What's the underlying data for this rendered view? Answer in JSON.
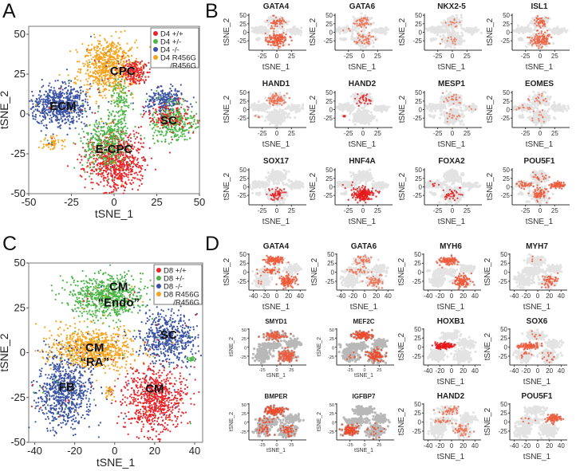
{
  "panel_letters": [
    "A",
    "B",
    "C",
    "D"
  ],
  "chart_data": [
    {
      "id": "A",
      "type": "scatter",
      "xlabel": "tSNE_1",
      "ylabel": "tSNE_2",
      "xlim": [
        -50,
        50
      ],
      "ylim": [
        -50,
        55
      ],
      "xticks": [
        -50,
        -25,
        0,
        25,
        50
      ],
      "yticks": [
        -50,
        -25,
        0,
        25,
        50
      ],
      "legend_position": "top-right",
      "legend": [
        {
          "label": "D4 +/+",
          "color": "#e8262b"
        },
        {
          "label": "D4 +/-",
          "color": "#4cb748"
        },
        {
          "label": "D4 -/-",
          "color": "#3a53a4"
        },
        {
          "label": "D4 R456G",
          "label2": "/R456G",
          "color": "#f6a31d"
        }
      ],
      "cluster_labels": [
        {
          "text": "CPC",
          "x": 5,
          "y": 27
        },
        {
          "text": "ECM",
          "x": -30,
          "y": 5
        },
        {
          "text": "SC",
          "x": 32,
          "y": -4
        },
        {
          "text": "E-CPC",
          "x": 0,
          "y": -22
        }
      ],
      "clusters": [
        {
          "name": "CPC",
          "series": 3,
          "cx": -3,
          "cy": 30,
          "sx": 8,
          "sy": 9,
          "n": 700
        },
        {
          "name": "CPC-top",
          "series": 0,
          "cx": 12,
          "cy": 27,
          "sx": 4,
          "sy": 4,
          "n": 180
        },
        {
          "name": "ECM",
          "series": 2,
          "cx": -32,
          "cy": 5,
          "sx": 9,
          "sy": 6,
          "n": 650
        },
        {
          "name": "SC-blue",
          "series": 2,
          "cx": 30,
          "cy": 8,
          "sx": 6,
          "sy": 4,
          "n": 250
        },
        {
          "name": "SC-green",
          "series": 1,
          "cx": 35,
          "cy": -5,
          "sx": 7,
          "sy": 6,
          "n": 320
        },
        {
          "name": "SC-red",
          "series": 0,
          "cx": 32,
          "cy": -2,
          "sx": 7,
          "sy": 5,
          "n": 120
        },
        {
          "name": "E-CPC-red",
          "series": 0,
          "cx": 1,
          "cy": -30,
          "sx": 8,
          "sy": 9,
          "n": 750
        },
        {
          "name": "E-CPC-green",
          "series": 1,
          "cx": -5,
          "cy": -18,
          "sx": 7,
          "sy": 8,
          "n": 350
        },
        {
          "name": "stripe",
          "series": 1,
          "cx": 3,
          "cy": 5,
          "sx": 3,
          "sy": 9,
          "n": 150
        },
        {
          "name": "orange-small",
          "series": 3,
          "cx": -36,
          "cy": -18,
          "sx": 3,
          "sy": 2,
          "n": 60
        }
      ]
    },
    {
      "id": "C",
      "type": "scatter",
      "xlabel": "tSNE_1",
      "ylabel": "tSNE_2",
      "xlim": [
        -43,
        44
      ],
      "ylim": [
        -50,
        50
      ],
      "xticks": [
        -40,
        -20,
        0,
        20,
        40
      ],
      "yticks": [
        -50,
        -25,
        0,
        25,
        50
      ],
      "legend_position": "top-right",
      "legend": [
        {
          "label": "D8 +/+",
          "color": "#e8262b"
        },
        {
          "label": "D8 +/-",
          "color": "#4cb748"
        },
        {
          "label": "D8 -/-",
          "color": "#3a53a4"
        },
        {
          "label": "D8 R456G",
          "label2": "/R456G",
          "color": "#f6a31d"
        }
      ],
      "cluster_labels": [
        {
          "text": "CM",
          "x": 2,
          "y": 37
        },
        {
          "text": "“Endo”",
          "x": 2,
          "y": 28
        },
        {
          "text": "CM",
          "x": -10,
          "y": 3
        },
        {
          "text": "“RA”",
          "x": -10,
          "y": -5
        },
        {
          "text": "SC",
          "x": 27,
          "y": 10
        },
        {
          "text": "FB",
          "x": -24,
          "y": -19
        },
        {
          "text": "CM",
          "x": 20,
          "y": -20
        }
      ],
      "clusters": [
        {
          "name": "Endo",
          "series": 1,
          "cx": -4,
          "cy": 31,
          "sx": 9,
          "sy": 6,
          "n": 700
        },
        {
          "name": "RA",
          "series": 3,
          "cx": -11,
          "cy": 2,
          "sx": 11,
          "sy": 6,
          "n": 800
        },
        {
          "name": "SC",
          "series": 2,
          "cx": 27,
          "cy": 8,
          "sx": 7,
          "sy": 7,
          "n": 550
        },
        {
          "name": "FB",
          "series": 2,
          "cx": -25,
          "cy": -22,
          "sx": 7,
          "sy": 10,
          "n": 750
        },
        {
          "name": "CM",
          "series": 0,
          "cx": 20,
          "cy": -26,
          "sx": 8,
          "sy": 9,
          "n": 750
        },
        {
          "name": "small",
          "series": 3,
          "cx": -3,
          "cy": -22,
          "sx": 1,
          "sy": 2,
          "n": 25
        },
        {
          "name": "green-tail",
          "series": 1,
          "cx": 38,
          "cy": -4,
          "sx": 1.5,
          "sy": 1,
          "n": 20
        }
      ]
    },
    {
      "id": "B",
      "type": "scatter",
      "xlabel": "tSNE_1",
      "ylabel": "tSNE_2",
      "xlim": [
        -45,
        45
      ],
      "ylim": [
        -48,
        55
      ],
      "xticks": [
        -25,
        0,
        25
      ],
      "yticks": [
        -25,
        0,
        25,
        50
      ],
      "background_clusters": [
        {
          "name": "CPC",
          "cx": 0,
          "cy": 30,
          "sx": 8,
          "sy": 9
        },
        {
          "name": "ECM",
          "cx": -28,
          "cy": 7,
          "sx": 9,
          "sy": 5
        },
        {
          "name": "SC",
          "cx": 30,
          "cy": 5,
          "sx": 7,
          "sy": 5
        },
        {
          "name": "E-CPC",
          "cx": 0,
          "cy": -22,
          "sx": 9,
          "sy": 11
        },
        {
          "name": "small",
          "cx": -33,
          "cy": -20,
          "sx": 3,
          "sy": 2
        }
      ],
      "genes": [
        {
          "gene": "GATA4",
          "hi": {
            "E-CPC": 0.7,
            "CPC": 0.3
          },
          "color": "#ef5a3a"
        },
        {
          "gene": "GATA6",
          "hi": {
            "CPC": 0.25,
            "E-CPC": 0.2,
            "ECM": 0.05
          },
          "color": "#f07050"
        },
        {
          "gene": "NKX2-5",
          "hi": {
            "CPC": 0.08,
            "E-CPC": 0.08
          },
          "color": "#f07050"
        },
        {
          "gene": "ISL1",
          "hi": {
            "E-CPC": 0.45,
            "CPC": 0.3
          },
          "color": "#ef6040"
        },
        {
          "gene": "HAND1",
          "hi": {
            "CPC": 0.45,
            "small": 0.2
          },
          "color": "#f07050"
        },
        {
          "gene": "HAND2",
          "hi": {
            "CPC": 0.25,
            "small": 0.3
          },
          "color": "#e8191b"
        },
        {
          "gene": "MESP1",
          "hi": {
            "CPC": 0.1,
            "E-CPC": 0.05,
            "SC": 0.03
          },
          "color": "#f07050"
        },
        {
          "gene": "EOMES",
          "hi": {
            "CPC": 0.15,
            "ECM": 0.12,
            "E-CPC": 0.05
          },
          "color": "#f07050"
        },
        {
          "gene": "SOX17",
          "hi": {
            "E-CPC": 0.2
          },
          "color": "#e8191b"
        },
        {
          "gene": "HNF4A",
          "hi": {
            "E-CPC": 0.85,
            "ECM": 0.03
          },
          "color": "#e8191b"
        },
        {
          "gene": "FOXA2",
          "hi": {
            "E-CPC": 0.12,
            "ECM": 0.04
          },
          "color": "#e8191b"
        },
        {
          "gene": "POU5F1",
          "hi": {
            "SC": 0.95,
            "ECM": 0.35,
            "E-CPC": 0.3,
            "CPC": 0.1
          },
          "color": "#ef5a3a"
        }
      ]
    },
    {
      "id": "D",
      "type": "scatter",
      "xlabel": "tSNE_1",
      "ylabel": "tSNE_2",
      "xlim": [
        -45,
        45
      ],
      "ylim": [
        -45,
        52
      ],
      "xticks": [
        -40,
        -20,
        0,
        20,
        40
      ],
      "yticks": [
        -25,
        0,
        25,
        50
      ],
      "xticks_small": [
        -25,
        0,
        25
      ],
      "background_clusters": [
        {
          "name": "Endo",
          "cx": -4,
          "cy": 32,
          "sx": 9,
          "sy": 6
        },
        {
          "name": "RA",
          "cx": -13,
          "cy": 3,
          "sx": 11,
          "sy": 5
        },
        {
          "name": "SC",
          "cx": 27,
          "cy": 10,
          "sx": 7,
          "sy": 6
        },
        {
          "name": "FB",
          "cx": -24,
          "cy": -22,
          "sx": 7,
          "sy": 9
        },
        {
          "name": "CM",
          "cx": 18,
          "cy": -24,
          "sx": 8,
          "sy": 9
        }
      ],
      "genes": [
        {
          "gene": "GATA4",
          "hi": {
            "Endo": 0.8,
            "CM": 0.8,
            "RA": 0.3,
            "FB": 0.05
          },
          "color": "#ef5a3a"
        },
        {
          "gene": "GATA6",
          "hi": {
            "Endo": 0.35,
            "RA": 0.3,
            "CM": 0.3
          },
          "color": "#f07050"
        },
        {
          "gene": "MYH6",
          "hi": {
            "Endo": 0.9,
            "CM": 0.8
          },
          "color": "#ef5a3a"
        },
        {
          "gene": "MYH7",
          "hi": {
            "CM": 0.3,
            "Endo": 0.02
          },
          "color": "#ef5a3a"
        },
        {
          "gene": "SMYD1",
          "hi": {
            "Endo": 0.8,
            "CM": 0.8
          },
          "color": "#ef5a3a",
          "dark_bg": true
        },
        {
          "gene": "MEF2C",
          "hi": {
            "Endo": 1.0,
            "CM": 0.6,
            "FB": 0.05
          },
          "color": "#ee4a2a",
          "dark_bg": true
        },
        {
          "gene": "HOXB1",
          "hi": {
            "RA": 1.0
          },
          "color": "#e8191b"
        },
        {
          "gene": "SOX6",
          "hi": {
            "RA": 0.8,
            "FB": 0.1,
            "CM": 0.1,
            "Endo": 0.05
          },
          "color": "#ef5a3a"
        },
        {
          "gene": "BMPER",
          "hi": {
            "Endo": 1.0,
            "CM": 0.25,
            "FB": 0.2,
            "RA": 0.1
          },
          "color": "#ee4a2a",
          "dark_bg": true
        },
        {
          "gene": "IGFBP7",
          "hi": {
            "FB": 0.8,
            "CM": 0.1
          },
          "color": "#ee4a2a",
          "dark_bg": true
        },
        {
          "gene": "HAND2",
          "hi": {
            "Endo": 0.4,
            "CM": 0.3,
            "RA": 0.2
          },
          "color": "#f07050"
        },
        {
          "gene": "POU5F1",
          "hi": {
            "SC": 1.0,
            "RA": 0.03
          },
          "color": "#ef5a3a"
        }
      ]
    }
  ]
}
